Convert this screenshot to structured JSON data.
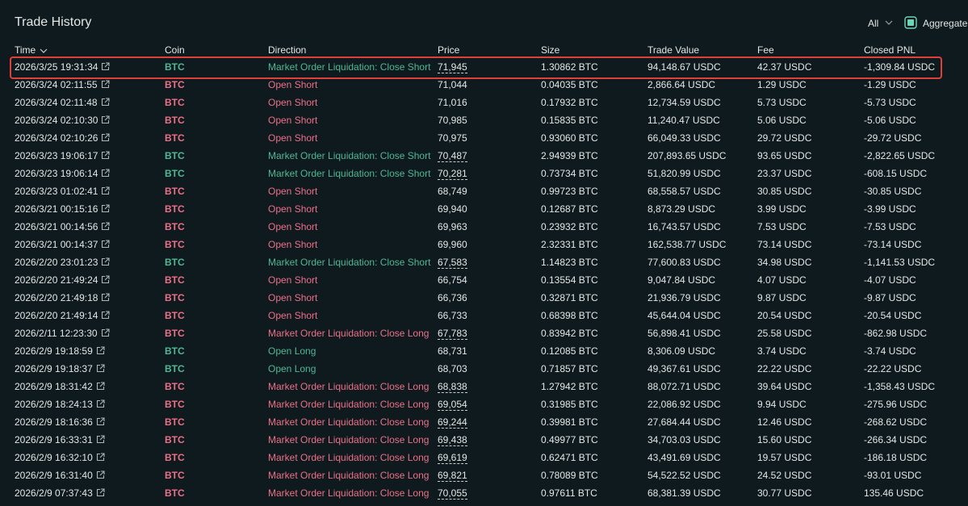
{
  "header": {
    "title": "Trade History",
    "filter": "All",
    "aggregate": "Aggregate"
  },
  "columns": [
    "Time",
    "Coin",
    "Direction",
    "Price",
    "Size",
    "Trade Value",
    "Fee",
    "Closed PNL"
  ],
  "rows": [
    {
      "time": "2026/3/25 19:31:34",
      "coin": "BTC",
      "direction": "Market Order Liquidation: Close Short",
      "price": "71,945",
      "size": "1.30862 BTC",
      "trade_value": "94,148.67 USDC",
      "fee": "42.37 USDC",
      "closed_pnl": "-1,309.84 USDC",
      "color": "#4fb894",
      "dashed": true
    },
    {
      "time": "2026/3/24 02:11:55",
      "coin": "BTC",
      "direction": "Open Short",
      "price": "71,044",
      "size": "0.04035 BTC",
      "trade_value": "2,866.64 USDC",
      "fee": "1.29 USDC",
      "closed_pnl": "-1.29 USDC",
      "color": "#ed7088",
      "dashed": false
    },
    {
      "time": "2026/3/24 02:11:48",
      "coin": "BTC",
      "direction": "Open Short",
      "price": "71,016",
      "size": "0.17932 BTC",
      "trade_value": "12,734.59 USDC",
      "fee": "5.73 USDC",
      "closed_pnl": "-5.73 USDC",
      "color": "#ed7088",
      "dashed": false
    },
    {
      "time": "2026/3/24 02:10:30",
      "coin": "BTC",
      "direction": "Open Short",
      "price": "70,985",
      "size": "0.15835 BTC",
      "trade_value": "11,240.47 USDC",
      "fee": "5.06 USDC",
      "closed_pnl": "-5.06 USDC",
      "color": "#ed7088",
      "dashed": false
    },
    {
      "time": "2026/3/24 02:10:26",
      "coin": "BTC",
      "direction": "Open Short",
      "price": "70,975",
      "size": "0.93060 BTC",
      "trade_value": "66,049.33 USDC",
      "fee": "29.72 USDC",
      "closed_pnl": "-29.72 USDC",
      "color": "#ed7088",
      "dashed": false
    },
    {
      "time": "2026/3/23 19:06:17",
      "coin": "BTC",
      "direction": "Market Order Liquidation: Close Short",
      "price": "70,487",
      "size": "2.94939 BTC",
      "trade_value": "207,893.65 USDC",
      "fee": "93.65 USDC",
      "closed_pnl": "-2,822.65 USDC",
      "color": "#4fb894",
      "dashed": true
    },
    {
      "time": "2026/3/23 19:06:14",
      "coin": "BTC",
      "direction": "Market Order Liquidation: Close Short",
      "price": "70,281",
      "size": "0.73734 BTC",
      "trade_value": "51,820.99 USDC",
      "fee": "23.37 USDC",
      "closed_pnl": "-608.15 USDC",
      "color": "#4fb894",
      "dashed": true
    },
    {
      "time": "2026/3/23 01:02:41",
      "coin": "BTC",
      "direction": "Open Short",
      "price": "68,749",
      "size": "0.99723 BTC",
      "trade_value": "68,558.57 USDC",
      "fee": "30.85 USDC",
      "closed_pnl": "-30.85 USDC",
      "color": "#ed7088",
      "dashed": false
    },
    {
      "time": "2026/3/21 00:15:16",
      "coin": "BTC",
      "direction": "Open Short",
      "price": "69,940",
      "size": "0.12687 BTC",
      "trade_value": "8,873.29 USDC",
      "fee": "3.99 USDC",
      "closed_pnl": "-3.99 USDC",
      "color": "#ed7088",
      "dashed": false
    },
    {
      "time": "2026/3/21 00:14:56",
      "coin": "BTC",
      "direction": "Open Short",
      "price": "69,963",
      "size": "0.23932 BTC",
      "trade_value": "16,743.57 USDC",
      "fee": "7.53 USDC",
      "closed_pnl": "-7.53 USDC",
      "color": "#ed7088",
      "dashed": false
    },
    {
      "time": "2026/3/21 00:14:37",
      "coin": "BTC",
      "direction": "Open Short",
      "price": "69,960",
      "size": "2.32331 BTC",
      "trade_value": "162,538.77 USDC",
      "fee": "73.14 USDC",
      "closed_pnl": "-73.14 USDC",
      "color": "#ed7088",
      "dashed": false
    },
    {
      "time": "2026/2/20 23:01:23",
      "coin": "BTC",
      "direction": "Market Order Liquidation: Close Short",
      "price": "67,583",
      "size": "1.14823 BTC",
      "trade_value": "77,600.83 USDC",
      "fee": "34.98 USDC",
      "closed_pnl": "-1,141.53 USDC",
      "color": "#4fb894",
      "dashed": true
    },
    {
      "time": "2026/2/20 21:49:24",
      "coin": "BTC",
      "direction": "Open Short",
      "price": "66,754",
      "size": "0.13554 BTC",
      "trade_value": "9,047.84 USDC",
      "fee": "4.07 USDC",
      "closed_pnl": "-4.07 USDC",
      "color": "#ed7088",
      "dashed": false
    },
    {
      "time": "2026/2/20 21:49:18",
      "coin": "BTC",
      "direction": "Open Short",
      "price": "66,736",
      "size": "0.32871 BTC",
      "trade_value": "21,936.79 USDC",
      "fee": "9.87 USDC",
      "closed_pnl": "-9.87 USDC",
      "color": "#ed7088",
      "dashed": false
    },
    {
      "time": "2026/2/20 21:49:14",
      "coin": "BTC",
      "direction": "Open Short",
      "price": "66,733",
      "size": "0.68398 BTC",
      "trade_value": "45,644.04 USDC",
      "fee": "20.54 USDC",
      "closed_pnl": "-20.54 USDC",
      "color": "#ed7088",
      "dashed": false
    },
    {
      "time": "2026/2/11 12:23:30",
      "coin": "BTC",
      "direction": "Market Order Liquidation: Close Long",
      "price": "67,783",
      "size": "0.83942 BTC",
      "trade_value": "56,898.41 USDC",
      "fee": "25.58 USDC",
      "closed_pnl": "-862.98 USDC",
      "color": "#ed7088",
      "dashed": true
    },
    {
      "time": "2026/2/9 19:18:59",
      "coin": "BTC",
      "direction": "Open Long",
      "price": "68,731",
      "size": "0.12085 BTC",
      "trade_value": "8,306.09 USDC",
      "fee": "3.74 USDC",
      "closed_pnl": "-3.74 USDC",
      "color": "#4fb894",
      "dashed": false
    },
    {
      "time": "2026/2/9 19:18:37",
      "coin": "BTC",
      "direction": "Open Long",
      "price": "68,703",
      "size": "0.71857 BTC",
      "trade_value": "49,367.61 USDC",
      "fee": "22.22 USDC",
      "closed_pnl": "-22.22 USDC",
      "color": "#4fb894",
      "dashed": false
    },
    {
      "time": "2026/2/9 18:31:42",
      "coin": "BTC",
      "direction": "Market Order Liquidation: Close Long",
      "price": "68,838",
      "size": "1.27942 BTC",
      "trade_value": "88,072.71 USDC",
      "fee": "39.64 USDC",
      "closed_pnl": "-1,358.43 USDC",
      "color": "#ed7088",
      "dashed": true
    },
    {
      "time": "2026/2/9 18:24:13",
      "coin": "BTC",
      "direction": "Market Order Liquidation: Close Long",
      "price": "69,054",
      "size": "0.31985 BTC",
      "trade_value": "22,086.92 USDC",
      "fee": "9.94 USDC",
      "closed_pnl": "-275.96 USDC",
      "color": "#ed7088",
      "dashed": true
    },
    {
      "time": "2026/2/9 18:16:36",
      "coin": "BTC",
      "direction": "Market Order Liquidation: Close Long",
      "price": "69,244",
      "size": "0.39981 BTC",
      "trade_value": "27,684.44 USDC",
      "fee": "12.46 USDC",
      "closed_pnl": "-268.62 USDC",
      "color": "#ed7088",
      "dashed": true
    },
    {
      "time": "2026/2/9 16:33:31",
      "coin": "BTC",
      "direction": "Market Order Liquidation: Close Long",
      "price": "69,438",
      "size": "0.49977 BTC",
      "trade_value": "34,703.03 USDC",
      "fee": "15.60 USDC",
      "closed_pnl": "-266.34 USDC",
      "color": "#ed7088",
      "dashed": true
    },
    {
      "time": "2026/2/9 16:32:10",
      "coin": "BTC",
      "direction": "Market Order Liquidation: Close Long",
      "price": "69,619",
      "size": "0.62471 BTC",
      "trade_value": "43,491.69 USDC",
      "fee": "19.57 USDC",
      "closed_pnl": "-186.18 USDC",
      "color": "#ed7088",
      "dashed": true
    },
    {
      "time": "2026/2/9 16:31:40",
      "coin": "BTC",
      "direction": "Market Order Liquidation: Close Long",
      "price": "69,821",
      "size": "0.78089 BTC",
      "trade_value": "54,522.52 USDC",
      "fee": "24.52 USDC",
      "closed_pnl": "-93.01 USDC",
      "color": "#ed7088",
      "dashed": true
    },
    {
      "time": "2026/2/9 07:37:43",
      "coin": "BTC",
      "direction": "Market Order Liquidation: Close Long",
      "price": "70,055",
      "size": "0.97611 BTC",
      "trade_value": "68,381.39 USDC",
      "fee": "30.77 USDC",
      "closed_pnl": "135.46 USDC",
      "color": "#ed7088",
      "dashed": true
    }
  ]
}
